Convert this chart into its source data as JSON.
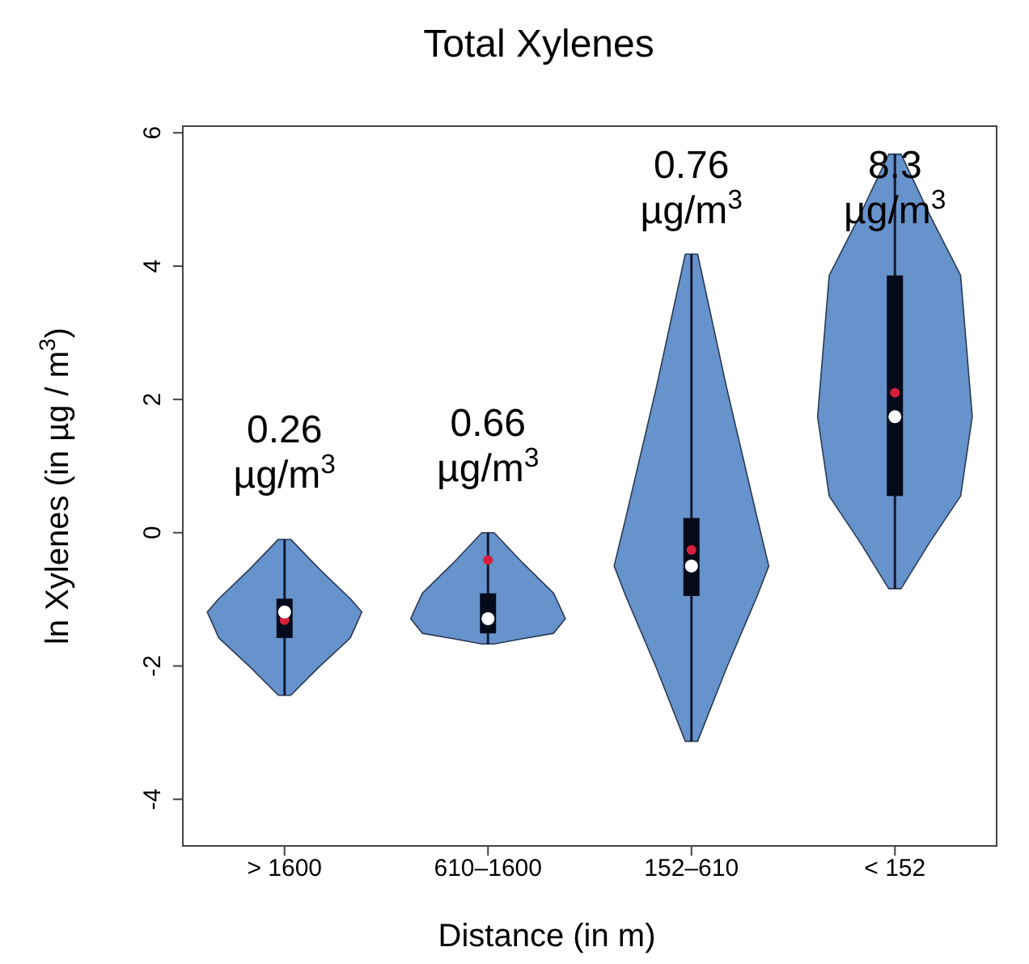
{
  "chart_data": {
    "type": "box",
    "title": "Total Xylenes",
    "xlabel": "Distance (in m)",
    "ylabel": "ln Xylenes (in µg / m$^{3}$)",
    "categories": [
      "> 1600",
      "610–1600",
      "152–610",
      "< 152"
    ],
    "color": "#050a1a",
    "boxes": [
      {
        "low": -2.44,
        "q1": -1.58,
        "median": -1.19,
        "q3": -0.99,
        "high": -0.1,
        "mean": -1.31
      },
      {
        "low": -1.67,
        "q1": -1.51,
        "median": -1.29,
        "q3": -0.91,
        "high": 0.0,
        "mean": -0.41
      },
      {
        "low": -3.13,
        "q1": -0.95,
        "median": -0.5,
        "q3": 0.22,
        "high": 4.18,
        "mean": -0.26
      },
      {
        "low": -0.84,
        "q1": 0.55,
        "median": 1.74,
        "q3": 3.86,
        "high": 5.68,
        "mean": 2.1
      }
    ],
    "ylim": [
      -4.7,
      6.1
    ],
    "yticks": [
      -4,
      -2,
      0,
      2,
      4,
      6
    ],
    "annotations": [
      "0.26 µg/m$^{3}$",
      "0.66 µg/m$^{3}$",
      "0.76 µg/m$^{3}$",
      "8.3 µg/m$^{3}$"
    ]
  }
}
